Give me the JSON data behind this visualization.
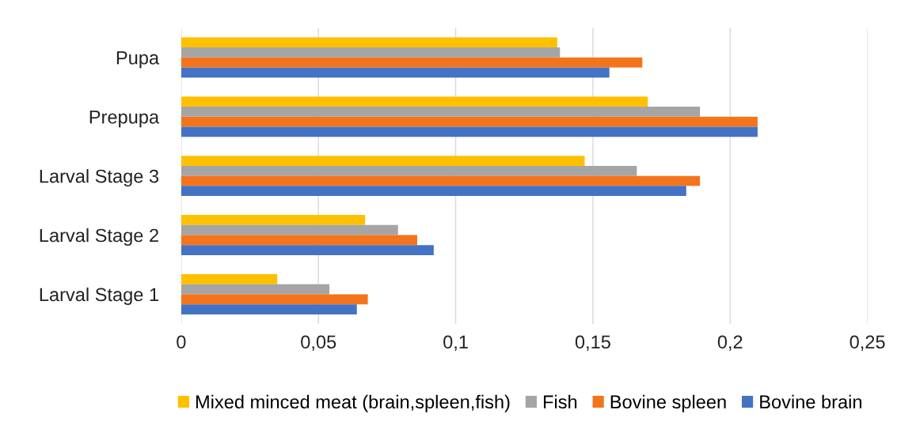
{
  "chart_data": {
    "type": "bar",
    "orientation": "horizontal",
    "categories": [
      "Pupa",
      "Prepupa",
      "Larval Stage 3",
      "Larval Stage 2",
      "Larval Stage 1"
    ],
    "series": [
      {
        "name": "Mixed minced meat (brain,spleen,fish)",
        "color": "#ffc000",
        "values": [
          0.137,
          0.17,
          0.147,
          0.067,
          0.035
        ]
      },
      {
        "name": "Fish",
        "color": "#a5a5a5",
        "values": [
          0.138,
          0.189,
          0.166,
          0.079,
          0.054
        ]
      },
      {
        "name": "Bovine spleen",
        "color": "#f4741c",
        "values": [
          0.168,
          0.21,
          0.189,
          0.086,
          0.068
        ]
      },
      {
        "name": "Bovine brain",
        "color": "#4472c4",
        "values": [
          0.156,
          0.21,
          0.184,
          0.092,
          0.064
        ]
      }
    ],
    "xlim": [
      0,
      0.25
    ],
    "xticks": [
      {
        "value": 0,
        "label": "0"
      },
      {
        "value": 0.05,
        "label": "0,05"
      },
      {
        "value": 0.1,
        "label": "0,1"
      },
      {
        "value": 0.15,
        "label": "0,15"
      },
      {
        "value": 0.2,
        "label": "0,2"
      },
      {
        "value": 0.25,
        "label": "0,25"
      }
    ],
    "grid": "x",
    "legend": "bottom"
  }
}
